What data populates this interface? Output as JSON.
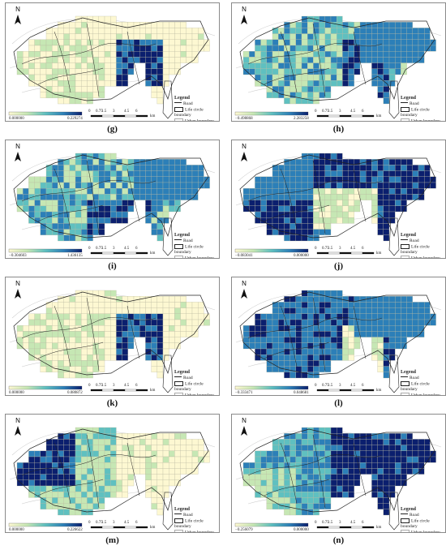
{
  "legend": {
    "title": "Legend",
    "road": "Road",
    "life_circle": "Life circle boundary",
    "urban": "Urban boundary"
  },
  "north": "N",
  "scale": [
    "0",
    "0.75",
    "1.5",
    "3",
    "4.5",
    "6"
  ],
  "scale_unit": "km",
  "colors": {
    "low": "#fdf8d2",
    "mid1": "#c6e7b4",
    "mid2": "#5fc0c0",
    "mid3": "#2c7fb8",
    "high": "#0b1f6e"
  },
  "panels": [
    {
      "label": "(g)",
      "min": "0.000000",
      "max": "0.229274",
      "pattern": "east_low_cluster"
    },
    {
      "label": "(h)",
      "min": "−0.498868",
      "max": "2.283258",
      "pattern": "mixed_mid"
    },
    {
      "label": "(i)",
      "min": "−0.304603",
      "max": "1.436135",
      "pattern": "mixed_mid2"
    },
    {
      "label": "(j)",
      "min": "−0.083041",
      "max": "0.000000",
      "pattern": "mostly_high"
    },
    {
      "label": "(k)",
      "min": "0.000000",
      "max": "0.080872",
      "pattern": "east_low_cluster"
    },
    {
      "label": "(l)",
      "min": "−0.333471",
      "max": "0.048681",
      "pattern": "broad_mid"
    },
    {
      "label": "(m)",
      "min": "0.000000",
      "max": "0.226622",
      "pattern": "west_high"
    },
    {
      "label": "(n)",
      "min": "−0.256079",
      "max": "0.000000",
      "pattern": "east_high"
    }
  ]
}
